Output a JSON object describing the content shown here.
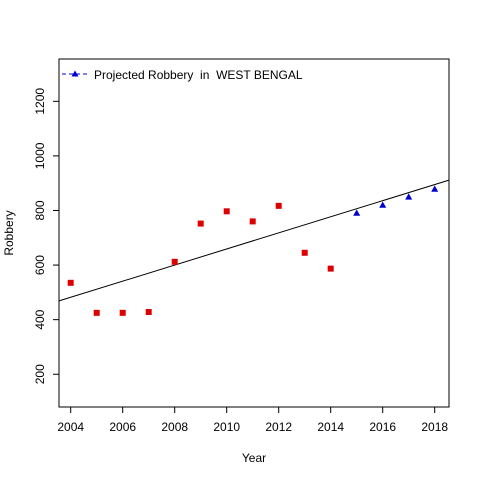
{
  "chart_data": {
    "type": "scatter",
    "title": "",
    "xlabel": "Year",
    "ylabel": "Robbery",
    "xlim": [
      2003.55,
      2018.55
    ],
    "ylim": [
      80,
      1355
    ],
    "x_ticks": [
      2004,
      2006,
      2008,
      2010,
      2012,
      2014,
      2016,
      2018
    ],
    "y_ticks": [
      200,
      400,
      600,
      800,
      1000,
      1200
    ],
    "grid": false,
    "legend": {
      "position": "top-left",
      "entries": [
        {
          "label": "Projected Robbery  in  WEST BENGAL",
          "color": "#0000cc",
          "marker": "triangle",
          "line": "dashed"
        }
      ]
    },
    "series": [
      {
        "kind": "observed",
        "color": "#dd0000",
        "marker": "square",
        "points": [
          {
            "x": 2004,
            "y": 535
          },
          {
            "x": 2005,
            "y": 425
          },
          {
            "x": 2006,
            "y": 425
          },
          {
            "x": 2007,
            "y": 428
          },
          {
            "x": 2008,
            "y": 612
          },
          {
            "x": 2009,
            "y": 752
          },
          {
            "x": 2010,
            "y": 797
          },
          {
            "x": 2011,
            "y": 760
          },
          {
            "x": 2012,
            "y": 817
          },
          {
            "x": 2013,
            "y": 645
          },
          {
            "x": 2014,
            "y": 587
          }
        ]
      },
      {
        "name": "Projected Robbery  in  WEST BENGAL",
        "color": "#0000cc",
        "marker": "triangle",
        "points": [
          {
            "x": 2015,
            "y": 790
          },
          {
            "x": 2016,
            "y": 819
          },
          {
            "x": 2017,
            "y": 849
          },
          {
            "x": 2018,
            "y": 878
          }
        ]
      }
    ],
    "trend_line": {
      "color": "#000000",
      "slope": 29.5,
      "intercept_at_2004": 482
    }
  }
}
